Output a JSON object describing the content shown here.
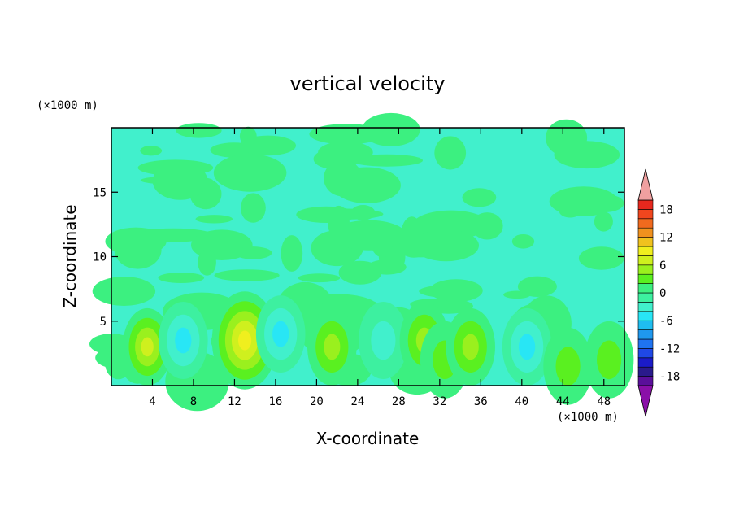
{
  "chart_data": {
    "type": "heatmap",
    "title": "vertical velocity",
    "xlabel": "X-coordinate",
    "ylabel": "Z-coordinate",
    "x_unit": "(×1000 m)",
    "y_unit": "(×1000 m)",
    "xlim": [
      0,
      50
    ],
    "ylim": [
      0,
      20
    ],
    "x_ticks": [
      4,
      8,
      12,
      16,
      20,
      24,
      28,
      32,
      36,
      40,
      44,
      48
    ],
    "y_ticks": [
      5,
      10,
      15
    ],
    "colorbar": {
      "ticks": [
        18,
        12,
        6,
        0,
        -6,
        -12,
        -18
      ],
      "levels": [
        -20,
        -18,
        -16,
        -14,
        -12,
        -10,
        -8,
        -6,
        -4,
        -2,
        0,
        2,
        4,
        6,
        8,
        10,
        12,
        14,
        16,
        18,
        20
      ],
      "colors": [
        "#5a0f9a",
        "#2a1a8c",
        "#1b1bc8",
        "#1f48e6",
        "#1f73f0",
        "#1f98ee",
        "#1fbdf0",
        "#28e6f5",
        "#41f0cc",
        "#3df0a0",
        "#3cf080",
        "#5af020",
        "#9af01e",
        "#cff01e",
        "#f0ef1e",
        "#f0c21e",
        "#f0911e",
        "#f06a1e",
        "#f0461e",
        "#e6281e"
      ],
      "under_color": "#8a0fa8",
      "over_color": "#f0a0a0"
    },
    "features": [
      {
        "x": 3.5,
        "z": 3.0,
        "w": 6
      },
      {
        "x": 7.0,
        "z": 3.5,
        "w": -5
      },
      {
        "x": 13.0,
        "z": 3.5,
        "w": 9
      },
      {
        "x": 16.5,
        "z": 4.0,
        "w": -5
      },
      {
        "x": 21.5,
        "z": 3.0,
        "w": 5
      },
      {
        "x": 26.5,
        "z": 3.5,
        "w": -3
      },
      {
        "x": 30.5,
        "z": 3.5,
        "w": 4
      },
      {
        "x": 32.5,
        "z": 2.0,
        "w": 3
      },
      {
        "x": 35.0,
        "z": 3.0,
        "w": 4
      },
      {
        "x": 40.5,
        "z": 3.0,
        "w": -4
      },
      {
        "x": 44.5,
        "z": 1.5,
        "w": 3
      },
      {
        "x": 48.5,
        "z": 2.0,
        "w": 3
      }
    ]
  }
}
